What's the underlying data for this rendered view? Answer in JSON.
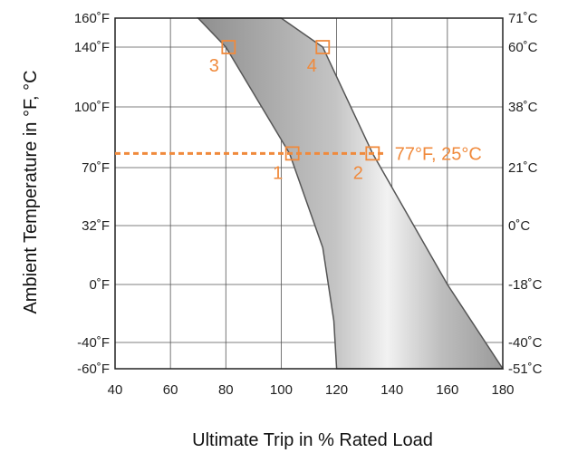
{
  "chart_data": {
    "type": "area",
    "title": "",
    "xlabel": "Ultimate Trip in % Rated Load",
    "ylabel": "Ambient Temperature in °F, °C",
    "xlim": [
      40,
      180
    ],
    "x_ticks": [
      40,
      60,
      80,
      100,
      120,
      140,
      160,
      180
    ],
    "y_ticks": [
      {
        "f": 160,
        "left": "160˚F",
        "right": "71˚C"
      },
      {
        "f": 140,
        "left": "140˚F",
        "right": "60˚C"
      },
      {
        "f": 100,
        "left": "100˚F",
        "right": "38˚C"
      },
      {
        "f": 70,
        "left": "70˚F",
        "right": "21˚C"
      },
      {
        "f": 32,
        "left": "32˚F",
        "right": "0˚C"
      },
      {
        "f": 0,
        "left": "0˚F",
        "right": "-18˚C"
      },
      {
        "f": -40,
        "left": "-40˚F",
        "right": "-40˚C"
      },
      {
        "f": -60,
        "left": "-60˚F",
        "right": "-51˚C"
      }
    ],
    "grid": true,
    "band": {
      "lower_boundary": [
        [
          70,
          160
        ],
        [
          80,
          140
        ],
        [
          103,
          77
        ],
        [
          115,
          20
        ],
        [
          119,
          -25
        ],
        [
          120,
          -60
        ]
      ],
      "upper_boundary": [
        [
          100,
          160
        ],
        [
          115,
          140
        ],
        [
          133,
          77
        ],
        [
          160,
          0
        ],
        [
          180,
          -60
        ]
      ],
      "fill": "#a8a8a8"
    },
    "reference_line": {
      "y": 77,
      "label": "77°F, 25°C",
      "color": "#f08a3c"
    },
    "markers": [
      {
        "id": "1",
        "label": "1",
        "x": 104,
        "y": 77
      },
      {
        "id": "2",
        "label": "2",
        "x": 133,
        "y": 77
      },
      {
        "id": "3",
        "label": "3",
        "x": 81,
        "y": 140
      },
      {
        "id": "4",
        "label": "4",
        "x": 115,
        "y": 140
      }
    ],
    "accent_color": "#f08a3c"
  }
}
